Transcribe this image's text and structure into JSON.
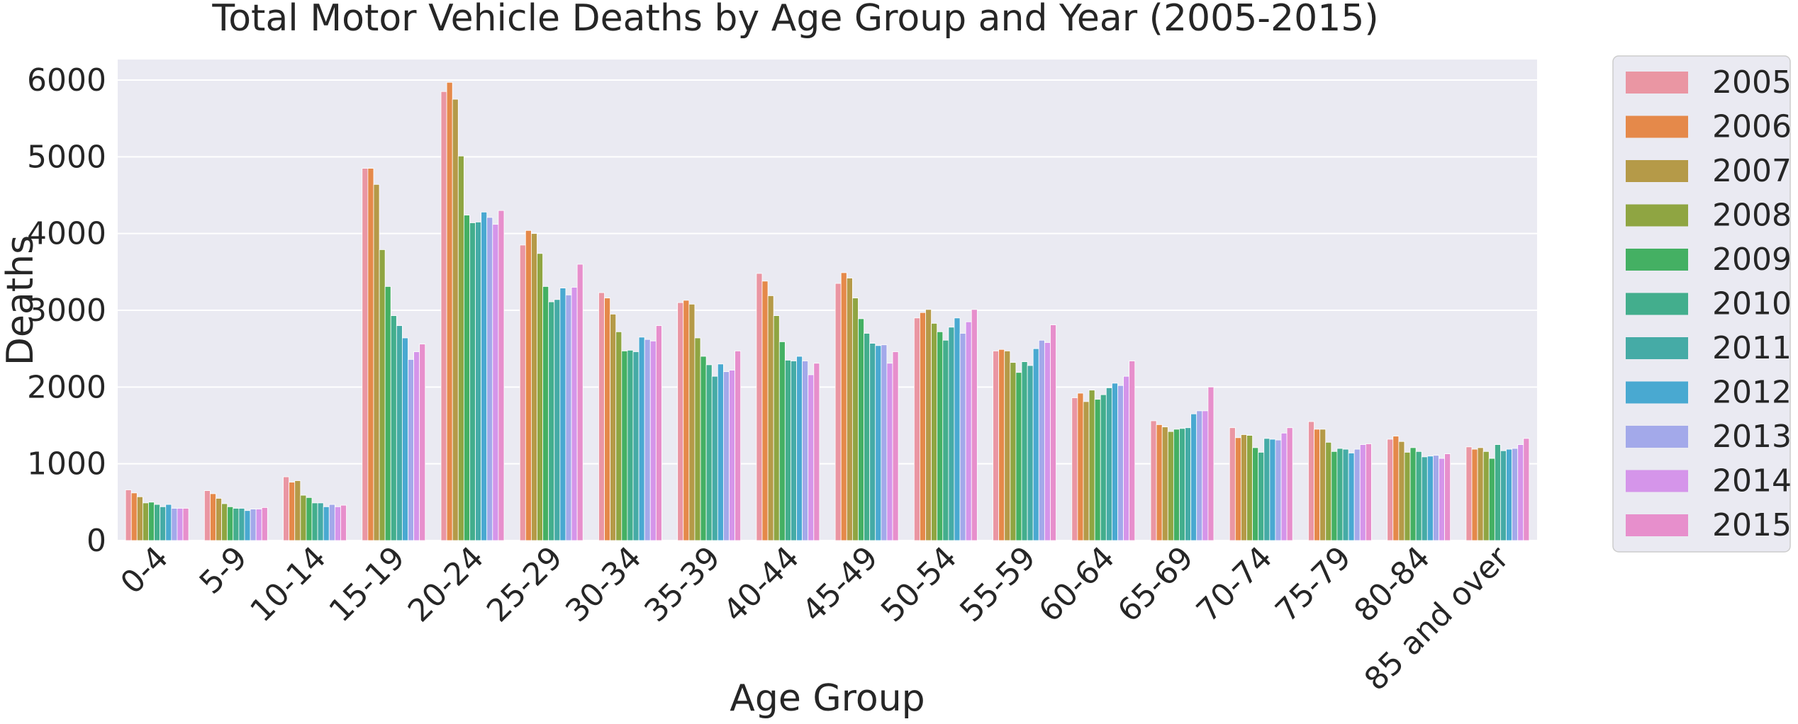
{
  "chart_data": {
    "type": "bar",
    "title": "Total Motor Vehicle Deaths by Age Group and Year (2005-2015)",
    "xlabel": "Age Group",
    "ylabel": "Deaths",
    "ylim": [
      0,
      6300
    ],
    "yticks": [
      0,
      1000,
      2000,
      3000,
      4000,
      5000,
      6000
    ],
    "grid": true,
    "legend_position": "outside-right",
    "categories": [
      "0-4",
      "5-9",
      "10-14",
      "15-19",
      "20-24",
      "25-29",
      "30-34",
      "35-39",
      "40-44",
      "45-49",
      "50-54",
      "55-59",
      "60-64",
      "65-69",
      "70-74",
      "75-79",
      "80-84",
      "85 and over"
    ],
    "series": [
      {
        "name": "2005",
        "color": "#ea96a3",
        "values": [
          660,
          650,
          830,
          4850,
          5850,
          3850,
          3230,
          3100,
          3480,
          3350,
          2900,
          2470,
          1860,
          1560,
          1470,
          1550,
          1320,
          1220
        ]
      },
      {
        "name": "2006",
        "color": "#e5894a",
        "values": [
          620,
          610,
          760,
          4850,
          5970,
          4040,
          3160,
          3130,
          3380,
          3490,
          2970,
          2490,
          1920,
          1510,
          1340,
          1450,
          1360,
          1190
        ]
      },
      {
        "name": "2007",
        "color": "#b59a48",
        "values": [
          570,
          550,
          780,
          4640,
          5750,
          4000,
          2950,
          3080,
          3190,
          3420,
          3010,
          2470,
          1810,
          1480,
          1380,
          1450,
          1290,
          1210
        ]
      },
      {
        "name": "2008",
        "color": "#8fa542",
        "values": [
          490,
          480,
          590,
          3790,
          5010,
          3740,
          2720,
          2640,
          2930,
          3160,
          2830,
          2320,
          1960,
          1420,
          1370,
          1280,
          1150,
          1160
        ]
      },
      {
        "name": "2009",
        "color": "#44b063",
        "values": [
          500,
          440,
          560,
          3310,
          4240,
          3310,
          2470,
          2400,
          2590,
          2890,
          2720,
          2190,
          1840,
          1450,
          1210,
          1160,
          1210,
          1070
        ]
      },
      {
        "name": "2010",
        "color": "#43ae8d",
        "values": [
          470,
          420,
          490,
          2930,
          4140,
          3110,
          2480,
          2290,
          2350,
          2700,
          2610,
          2330,
          1900,
          1460,
          1150,
          1200,
          1160,
          1250
        ]
      },
      {
        "name": "2011",
        "color": "#45aba6",
        "values": [
          440,
          420,
          490,
          2800,
          4150,
          3140,
          2460,
          2140,
          2340,
          2570,
          2780,
          2280,
          1990,
          1470,
          1330,
          1190,
          1090,
          1170
        ]
      },
      {
        "name": "2012",
        "color": "#49a9d1",
        "values": [
          470,
          390,
          440,
          2640,
          4280,
          3290,
          2650,
          2300,
          2400,
          2540,
          2900,
          2500,
          2050,
          1650,
          1320,
          1140,
          1100,
          1190
        ]
      },
      {
        "name": "2013",
        "color": "#a3a9ea",
        "values": [
          420,
          410,
          470,
          2360,
          4210,
          3200,
          2620,
          2200,
          2340,
          2550,
          2700,
          2610,
          2020,
          1690,
          1310,
          1190,
          1110,
          1200
        ]
      },
      {
        "name": "2014",
        "color": "#d595ea",
        "values": [
          420,
          410,
          440,
          2460,
          4120,
          3300,
          2600,
          2220,
          2160,
          2310,
          2850,
          2580,
          2140,
          1690,
          1400,
          1250,
          1070,
          1250
        ]
      },
      {
        "name": "2015",
        "color": "#e78fcc",
        "values": [
          420,
          430,
          460,
          2560,
          4300,
          3600,
          2800,
          2470,
          2310,
          2460,
          3010,
          2810,
          2340,
          2000,
          1470,
          1260,
          1130,
          1330
        ]
      }
    ]
  },
  "colors": {
    "plot_background": "#eaeaf2",
    "gridline": "#ffffff",
    "legend_background": "#eaeaf2",
    "legend_border": "#cccccc",
    "text": "#262626"
  }
}
